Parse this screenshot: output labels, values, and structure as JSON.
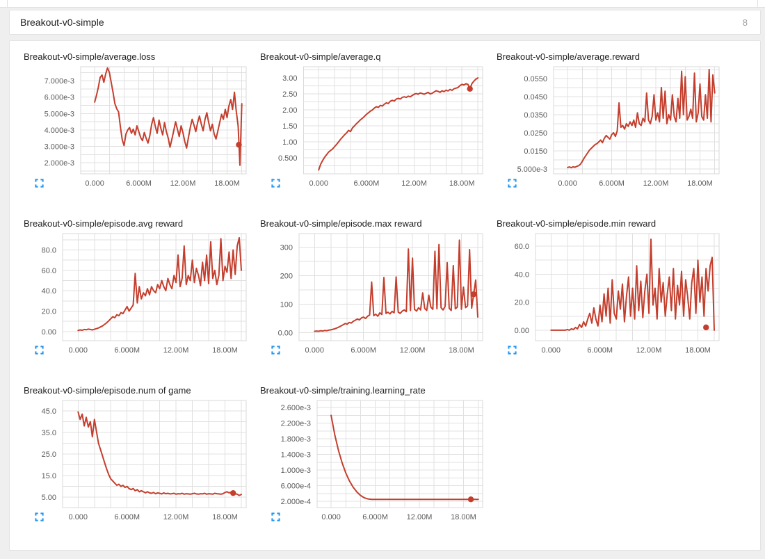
{
  "header": {
    "title": "Breakout-v0-simple",
    "count": "8"
  },
  "colors": {
    "line": "#c43e2d",
    "accent_blue": "#2196f3",
    "grid": "#e0e0e0",
    "plot_border": "#d9d9d9",
    "tick_label": "#5a5a5a"
  },
  "icons": {
    "expand": "fullscreen-corners-icon"
  },
  "chart_data": {
    "type": "line",
    "x_axis": {
      "unit": "steps (millions)",
      "lim": [
        -1.9,
        20.6
      ],
      "grid": {
        "from": 0,
        "step": 2
      },
      "ticks": [
        {
          "v": 0,
          "label": "0.000"
        },
        {
          "v": 6,
          "label": "6.000M"
        },
        {
          "v": 12,
          "label": "12.00M"
        },
        {
          "v": 18,
          "label": "18.00M"
        }
      ]
    },
    "charts": [
      {
        "title": "Breakout-v0-simple/average.loss",
        "ylim": [
          0.00133,
          0.00785
        ],
        "y_grid": {
          "from": 0.0015,
          "step": 0.0005
        },
        "y_ticks": [
          {
            "v": 0.007,
            "label": "7.000e-3"
          },
          {
            "v": 0.006,
            "label": "6.000e-3"
          },
          {
            "v": 0.005,
            "label": "5.000e-3"
          },
          {
            "v": 0.004,
            "label": "4.000e-3"
          },
          {
            "v": 0.003,
            "label": "3.000e-3"
          },
          {
            "v": 0.002,
            "label": "2.000e-3"
          }
        ],
        "x_start": 0,
        "x_step": 0.25,
        "y_scale": 0.001,
        "values": [
          5.7,
          6.1,
          6.6,
          7.2,
          7.35,
          6.9,
          7.42,
          7.78,
          7.5,
          6.9,
          6.3,
          5.6,
          5.3,
          5.1,
          4.2,
          3.4,
          3.05,
          3.75,
          4.0,
          4.15,
          3.8,
          4.05,
          3.7,
          4.25,
          3.9,
          3.55,
          3.35,
          3.85,
          3.5,
          3.2,
          3.65,
          4.35,
          4.75,
          4.2,
          3.8,
          4.6,
          4.1,
          3.7,
          4.45,
          3.9,
          3.5,
          2.95,
          3.45,
          3.95,
          4.5,
          4.05,
          3.6,
          4.25,
          3.85,
          3.3,
          2.9,
          3.55,
          4.15,
          4.65,
          4.3,
          3.9,
          4.45,
          4.85,
          4.35,
          3.95,
          4.65,
          5.05,
          4.45,
          3.95,
          4.35,
          3.75,
          3.45,
          3.95,
          4.45,
          4.95,
          4.65,
          5.25,
          4.75,
          5.45,
          5.85,
          5.25,
          6.3,
          5.15,
          4.25,
          1.85,
          5.6
        ],
        "marker": {
          "x": 19.6,
          "y": 0.0031
        }
      },
      {
        "title": "Breakout-v0-simple/average.q",
        "ylim": [
          0,
          3.35
        ],
        "y_grid": {
          "from": 0.25,
          "step": 0.25
        },
        "y_ticks": [
          {
            "v": 3.0,
            "label": "3.00"
          },
          {
            "v": 2.5,
            "label": "2.50"
          },
          {
            "v": 2.0,
            "label": "2.00"
          },
          {
            "v": 1.5,
            "label": "1.50"
          },
          {
            "v": 1.0,
            "label": "1.00"
          },
          {
            "v": 0.5,
            "label": "0.500"
          }
        ],
        "x_start": 0,
        "x_step": 0.25,
        "y_scale": 1,
        "values": [
          0.12,
          0.3,
          0.42,
          0.52,
          0.6,
          0.68,
          0.73,
          0.78,
          0.85,
          0.92,
          1.0,
          1.08,
          1.15,
          1.22,
          1.28,
          1.36,
          1.32,
          1.44,
          1.5,
          1.57,
          1.63,
          1.69,
          1.74,
          1.8,
          1.86,
          1.91,
          1.96,
          2.0,
          2.06,
          2.1,
          2.08,
          2.14,
          2.12,
          2.18,
          2.22,
          2.2,
          2.27,
          2.3,
          2.28,
          2.34,
          2.36,
          2.34,
          2.39,
          2.41,
          2.39,
          2.43,
          2.41,
          2.45,
          2.49,
          2.51,
          2.49,
          2.53,
          2.51,
          2.49,
          2.52,
          2.55,
          2.5,
          2.52,
          2.56,
          2.6,
          2.58,
          2.55,
          2.6,
          2.57,
          2.62,
          2.59,
          2.64,
          2.61,
          2.66,
          2.68,
          2.7,
          2.76,
          2.8,
          2.78,
          2.82,
          2.8,
          2.66,
          2.82,
          2.9,
          2.96,
          3.0
        ],
        "marker": {
          "x": 19.0,
          "y": 2.66
        }
      },
      {
        "title": "Breakout-v0-simple/average.reward",
        "ylim": [
          0.0023,
          0.0615
        ],
        "y_grid": {
          "from": 0.005,
          "step": 0.005
        },
        "y_ticks": [
          {
            "v": 0.055,
            "label": "0.0550"
          },
          {
            "v": 0.045,
            "label": "0.0450"
          },
          {
            "v": 0.035,
            "label": "0.0350"
          },
          {
            "v": 0.025,
            "label": "0.0250"
          },
          {
            "v": 0.015,
            "label": "0.0150"
          },
          {
            "v": 0.005,
            "label": "5.000e-3"
          }
        ],
        "x_start": 0,
        "x_step": 0.25,
        "y_scale": 0.001,
        "values": [
          5.8,
          6.1,
          5.7,
          6.2,
          5.9,
          6.4,
          6.8,
          7.6,
          9.2,
          11,
          12.5,
          14,
          15.5,
          16.5,
          17.5,
          18.5,
          19,
          20,
          21,
          19.5,
          22,
          23.5,
          22.5,
          21.5,
          24,
          25,
          23,
          26,
          41.5,
          28,
          29,
          27,
          30,
          28.5,
          31,
          29,
          32,
          28,
          36,
          30,
          29,
          33,
          31,
          47,
          32,
          30,
          34,
          46,
          32,
          36,
          31,
          50,
          33,
          48,
          30,
          35,
          32,
          46,
          34,
          31,
          44,
          33,
          59,
          35,
          56,
          32,
          34,
          38,
          33,
          58,
          31,
          36,
          52,
          34,
          32,
          46,
          33,
          60,
          31,
          57,
          47
        ],
        "marker": null
      },
      {
        "title": "Breakout-v0-simple/episode.avg reward",
        "ylim": [
          -9,
          96
        ],
        "y_grid": {
          "from": 0,
          "step": 10
        },
        "y_ticks": [
          {
            "v": 80,
            "label": "80.0"
          },
          {
            "v": 60,
            "label": "60.0"
          },
          {
            "v": 40,
            "label": "40.0"
          },
          {
            "v": 20,
            "label": "20.0"
          },
          {
            "v": 0,
            "label": "0.00"
          }
        ],
        "x_start": 0,
        "x_step": 0.25,
        "y_scale": 1,
        "values": [
          1,
          1.6,
          1.2,
          2,
          1.7,
          2.4,
          2,
          1.6,
          2.2,
          2.8,
          3.5,
          4.5,
          5.5,
          7,
          8.5,
          10.5,
          12.5,
          14.5,
          13.5,
          16.5,
          15.5,
          18.5,
          17.5,
          21,
          24.5,
          20,
          23,
          26,
          57,
          28,
          44,
          32,
          38,
          35,
          42,
          36,
          44,
          40,
          38,
          46,
          42,
          50,
          44,
          40,
          52,
          46,
          42,
          55,
          48,
          75,
          44,
          52,
          84,
          46,
          55,
          50,
          70,
          48,
          62,
          55,
          45,
          68,
          50,
          75,
          47,
          88,
          52,
          60,
          46,
          55,
          91,
          50,
          64,
          58,
          78,
          52,
          80,
          56,
          84,
          92,
          60
        ],
        "marker": null
      },
      {
        "title": "Breakout-v0-simple/episode.max reward",
        "ylim": [
          -28,
          348
        ],
        "y_grid": {
          "from": 0,
          "step": 50
        },
        "y_ticks": [
          {
            "v": 300,
            "label": "300"
          },
          {
            "v": 200,
            "label": "200"
          },
          {
            "v": 100,
            "label": "100"
          },
          {
            "v": 0,
            "label": "0.00"
          }
        ],
        "x_start": 0,
        "x_step": 0.25,
        "y_scale": 1,
        "values": [
          5,
          6,
          5,
          7,
          6,
          8,
          7,
          9,
          10,
          12,
          14,
          17,
          20,
          24,
          28,
          32,
          30,
          36,
          34,
          40,
          44,
          48,
          45,
          52,
          55,
          50,
          58,
          62,
          178,
          60,
          65,
          58,
          70,
          64,
          194,
          68,
          72,
          66,
          75,
          70,
          196,
          72,
          68,
          76,
          80,
          74,
          294,
          78,
          262,
          82,
          76,
          88,
          80,
          140,
          85,
          78,
          132,
          90,
          82,
          286,
          84,
          310,
          88,
          80,
          92,
          246,
          86,
          78,
          236,
          84,
          90,
          325,
          82,
          160,
          88,
          94,
          292,
          86,
          135,
          185,
          55
        ],
        "marker": {
          "x": 19.5,
          "y": 135
        }
      },
      {
        "title": "Breakout-v0-simple/episode.min reward",
        "ylim": [
          -7.5,
          69
        ],
        "y_grid": {
          "from": 0,
          "step": 10
        },
        "y_ticks": [
          {
            "v": 60,
            "label": "60.0"
          },
          {
            "v": 40,
            "label": "40.0"
          },
          {
            "v": 20,
            "label": "20.0"
          },
          {
            "v": 0,
            "label": "0.00"
          }
        ],
        "x_start": 0,
        "x_step": 0.25,
        "y_scale": 1,
        "values": [
          0,
          0,
          0,
          0,
          0,
          0,
          0,
          0,
          0.5,
          0,
          1,
          0.5,
          2,
          1,
          4,
          2,
          6,
          3,
          8,
          12,
          5,
          16,
          8,
          3,
          18,
          6,
          26,
          10,
          30,
          5,
          36,
          12,
          8,
          28,
          15,
          33,
          6,
          24,
          38,
          10,
          30,
          8,
          46,
          14,
          35,
          9,
          28,
          40,
          12,
          65,
          18,
          30,
          8,
          44,
          20,
          34,
          10,
          26,
          38,
          14,
          44,
          8,
          32,
          18,
          42,
          10,
          36,
          24,
          8,
          34,
          44,
          12,
          50,
          20,
          38,
          10,
          44,
          28,
          46,
          52,
          0
        ],
        "marker": {
          "x": 19.0,
          "y": 2
        }
      },
      {
        "title": "Breakout-v0-simple/episode.num of game",
        "ylim": [
          0.2,
          49.8
        ],
        "y_grid": {
          "from": 5,
          "step": 5
        },
        "y_ticks": [
          {
            "v": 45,
            "label": "45.0"
          },
          {
            "v": 35,
            "label": "35.0"
          },
          {
            "v": 25,
            "label": "25.0"
          },
          {
            "v": 15,
            "label": "15.0"
          },
          {
            "v": 5,
            "label": "5.00"
          }
        ],
        "x_start": 0,
        "x_step": 0.25,
        "y_scale": 1,
        "values": [
          44.5,
          41,
          43.5,
          38,
          42,
          37.5,
          40,
          33,
          41,
          35.5,
          30,
          27,
          24,
          21,
          18,
          15.5,
          13.5,
          12.5,
          11.5,
          10.5,
          11,
          10,
          10.5,
          9.5,
          10,
          9,
          8.5,
          9,
          8,
          8.5,
          7.5,
          8,
          7.5,
          7,
          7.5,
          7,
          6.8,
          7.2,
          6.6,
          7,
          6.8,
          6.5,
          7,
          6.6,
          6.8,
          6.5,
          6.6,
          6.8,
          6.4,
          6.6,
          6.5,
          6.8,
          6.4,
          6.6,
          6.5,
          6.4,
          6.6,
          6.8,
          6.5,
          6.4,
          6.6,
          6.5,
          6.8,
          6.4,
          6.6,
          6.5,
          6.4,
          6.8,
          6.6,
          6.5,
          6.4,
          6.6,
          7.2,
          7.5,
          7.0,
          7.4,
          6.8,
          6.5,
          6.4,
          5.8,
          6.3
        ],
        "marker": {
          "x": 19.0,
          "y": 6.9
        }
      },
      {
        "title": "Breakout-v0-simple/training.learning_rate",
        "ylim": [
          4e-05,
          0.00278
        ],
        "y_grid": {
          "from": 0.0002,
          "step": 0.0002
        },
        "y_ticks": [
          {
            "v": 0.0026,
            "label": "2.600e-3"
          },
          {
            "v": 0.0022,
            "label": "2.200e-3"
          },
          {
            "v": 0.0018,
            "label": "1.800e-3"
          },
          {
            "v": 0.0014,
            "label": "1.400e-3"
          },
          {
            "v": 0.001,
            "label": "1.000e-3"
          },
          {
            "v": 0.0006,
            "label": "6.000e-4"
          },
          {
            "v": 0.0002,
            "label": "2.000e-4"
          }
        ],
        "x_start": 0,
        "x_step": 0.5,
        "y_scale": 0.0001,
        "values": [
          24,
          19,
          15,
          11.8,
          9.2,
          7.2,
          5.6,
          4.4,
          3.5,
          2.9,
          2.6,
          2.5,
          2.5,
          2.5,
          2.5,
          2.5,
          2.5,
          2.5,
          2.5,
          2.5,
          2.5,
          2.5,
          2.5,
          2.5,
          2.5,
          2.5,
          2.5,
          2.5,
          2.5,
          2.5,
          2.5,
          2.5,
          2.5,
          2.5,
          2.5,
          2.5,
          2.5,
          2.5,
          2.5,
          2.5,
          2.5
        ],
        "marker": {
          "x": 19.0,
          "y": 0.00025
        }
      }
    ]
  }
}
